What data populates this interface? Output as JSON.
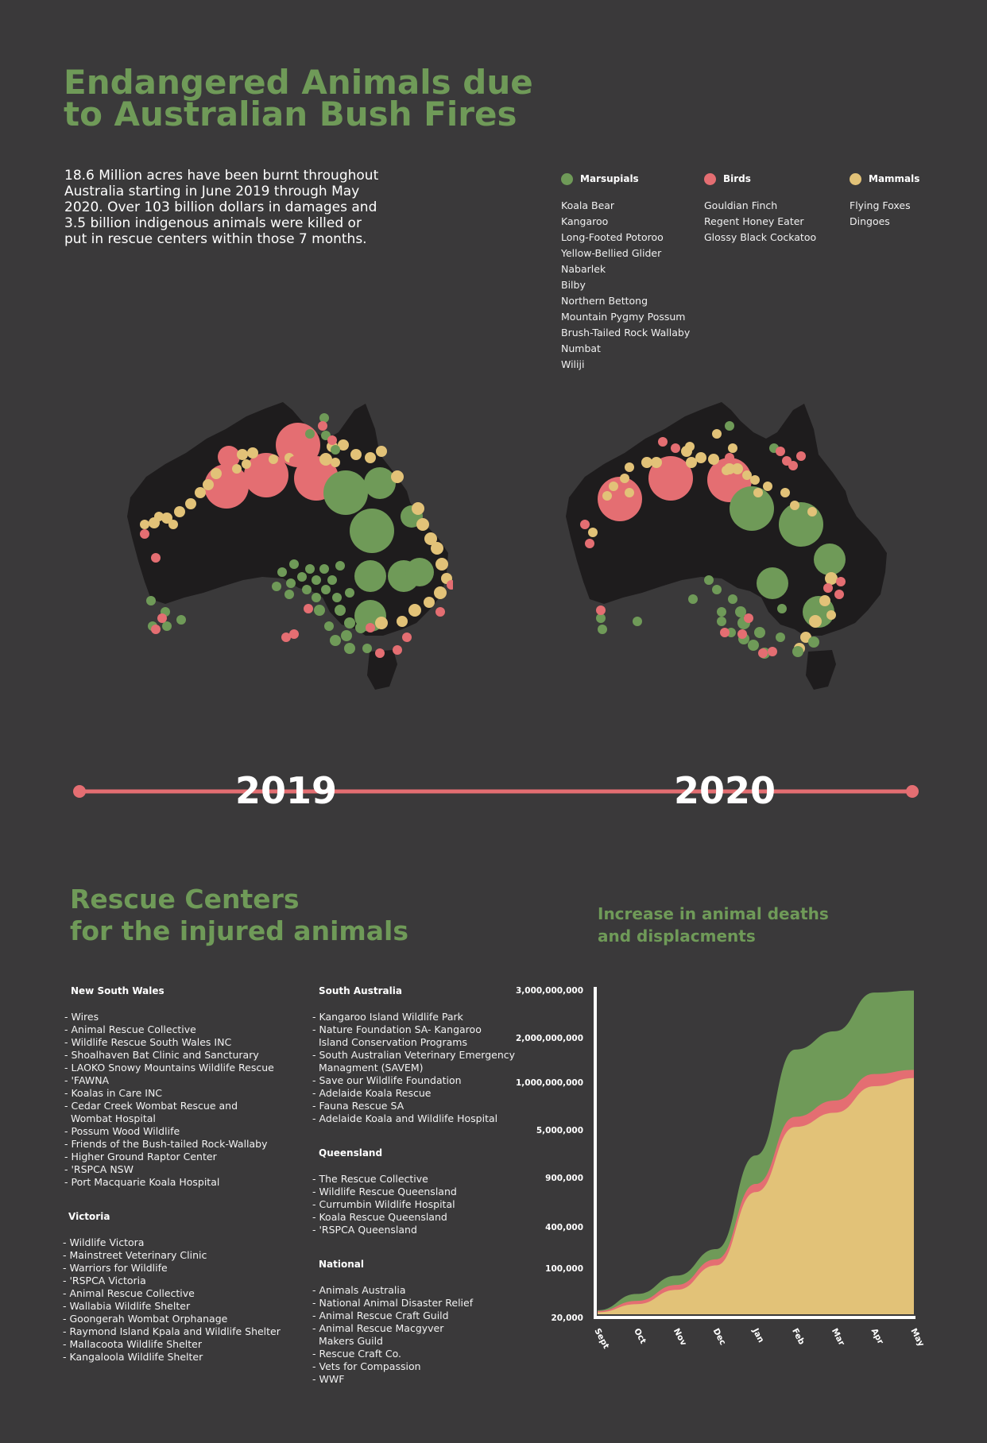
{
  "title": {
    "line1": "Endangered Animals due",
    "line2": "to Australian Bush Fires"
  },
  "intro": "18.6 Million acres have been burnt throughout Australia starting in June 2019 through May 2020. Over 103 billion dollars in damages and 3.5 billion indigenous animals were killed or put in rescue centers within those 7 months.",
  "colors": {
    "marsupials": "#6f9a58",
    "birds": "#e46e72",
    "mammals": "#e2c278",
    "background": "#3a393a",
    "map": "#1e1c1d",
    "timeline": "#e46e72"
  },
  "legend": [
    {
      "label": "Marsupials",
      "color": "#6f9a58",
      "items": [
        "Koala Bear",
        "Kangaroo",
        "Long-Footed Potoroo",
        "Yellow-Bellied Glider",
        "Nabarlek",
        "Bilby",
        "Northern Bettong",
        "Mountain Pygmy Possum",
        "Brush-Tailed Rock Wallaby",
        "Numbat",
        "Wiliji"
      ]
    },
    {
      "label": "Birds",
      "color": "#e46e72",
      "items": [
        "Gouldian Finch",
        "Regent Honey Eater",
        "Glossy Black Cockatoo"
      ]
    },
    {
      "label": "Mammals",
      "color": "#e2c278",
      "items": [
        "Flying Foxes",
        "Dingoes"
      ]
    }
  ],
  "timeline": {
    "year1": "2019",
    "year2": "2020"
  },
  "rescue": {
    "title_line1": "Rescue Centers",
    "title_line2": "for the injured animals",
    "nsw": {
      "name": "New South Wales",
      "items": [
        "- Wires",
        "- Animal Rescue Collective",
        "- Wildlife Rescue South Wales INC",
        "- Shoalhaven Bat Clinic and Sancturary",
        "- LAOKO Snowy Mountains Wildlife Rescue",
        "- 'FAWNA",
        "- Koalas in Care INC",
        "- Cedar Creek Wombat Rescue and",
        "  Wombat Hospital",
        "- Possum Wood Wildlife",
        "- Friends of the Bush-tailed Rock-Wallaby",
        "- Higher Ground Raptor Center",
        "- 'RSPCA NSW",
        "- Port Macquarie Koala Hospital"
      ]
    },
    "vic": {
      "name": "Victoria",
      "items": [
        "- Wildlife Victora",
        "- Mainstreet Veterinary Clinic",
        "- Warriors for Wildlife",
        "- 'RSPCA Victoria",
        "- Animal Rescue Collective",
        "- Wallabia Wildlife Shelter",
        "- Goongerah Wombat Orphanage",
        "- Raymond Island Kpala and Wildlife Shelter",
        "- Mallacoota Wildlife Shelter",
        "- Kangaloola Wildlife Shelter"
      ]
    },
    "sa": {
      "name": "South Australia",
      "items": [
        "- Kangaroo Island Wildlife Park",
        "- Nature Foundation SA- Kangaroo",
        "  Island Conservation Programs",
        "- South Australian Veterinary Emergency",
        "  Managment (SAVEM)",
        "- Save our Wildlife Foundation",
        "- Adelaide Koala Rescue",
        "- Fauna Rescue SA",
        "- Adelaide Koala and Wildlife Hospital"
      ]
    },
    "qld": {
      "name": "Queensland",
      "items": [
        "- The Rescue Collective",
        "- Wildlife Rescue Queensland",
        "- Currumbin Wildlife Hospital",
        "- Koala Rescue Queensland",
        "- 'RSPCA Queensland"
      ]
    },
    "national": {
      "name": "National",
      "items": [
        "- Animals Australia",
        "- National Animal Disaster Relief",
        "- Animal Rescue Craft Guild",
        "- Animal Rescue Macgyver",
        "  Makers Guild",
        "- Rescue Craft Co.",
        "- Vets for Compassion",
        "- WWF"
      ]
    }
  },
  "chart_data": {
    "type": "area",
    "title": "Increase in animal deaths and displacments",
    "categories": [
      "Sept",
      "Oct",
      "Nov",
      "Dec",
      "Jan",
      "Feb",
      "Mar",
      "Apr",
      "May"
    ],
    "y_tick_labels": [
      "20,000",
      "100,000",
      "400,000",
      "900,000",
      "5,000,000",
      "1,000,000,000",
      "2,000,000,000",
      "3,000,000,000"
    ],
    "y_tick_positions": [
      0,
      1,
      2,
      3,
      4,
      5,
      6,
      7
    ],
    "series": [
      {
        "color": "#e2c278",
        "values": [
          0.05,
          0.25,
          0.6,
          1.2,
          3.0,
          4.6,
          4.95,
          5.6,
          5.8
        ]
      },
      {
        "color": "#e46e72",
        "values": [
          0.08,
          0.33,
          0.72,
          1.35,
          3.2,
          4.85,
          5.25,
          5.9,
          6.0
        ]
      },
      {
        "color": "#6f9a58",
        "values": [
          0.1,
          0.5,
          0.95,
          1.6,
          3.9,
          6.5,
          6.95,
          7.9,
          7.95
        ]
      }
    ]
  }
}
